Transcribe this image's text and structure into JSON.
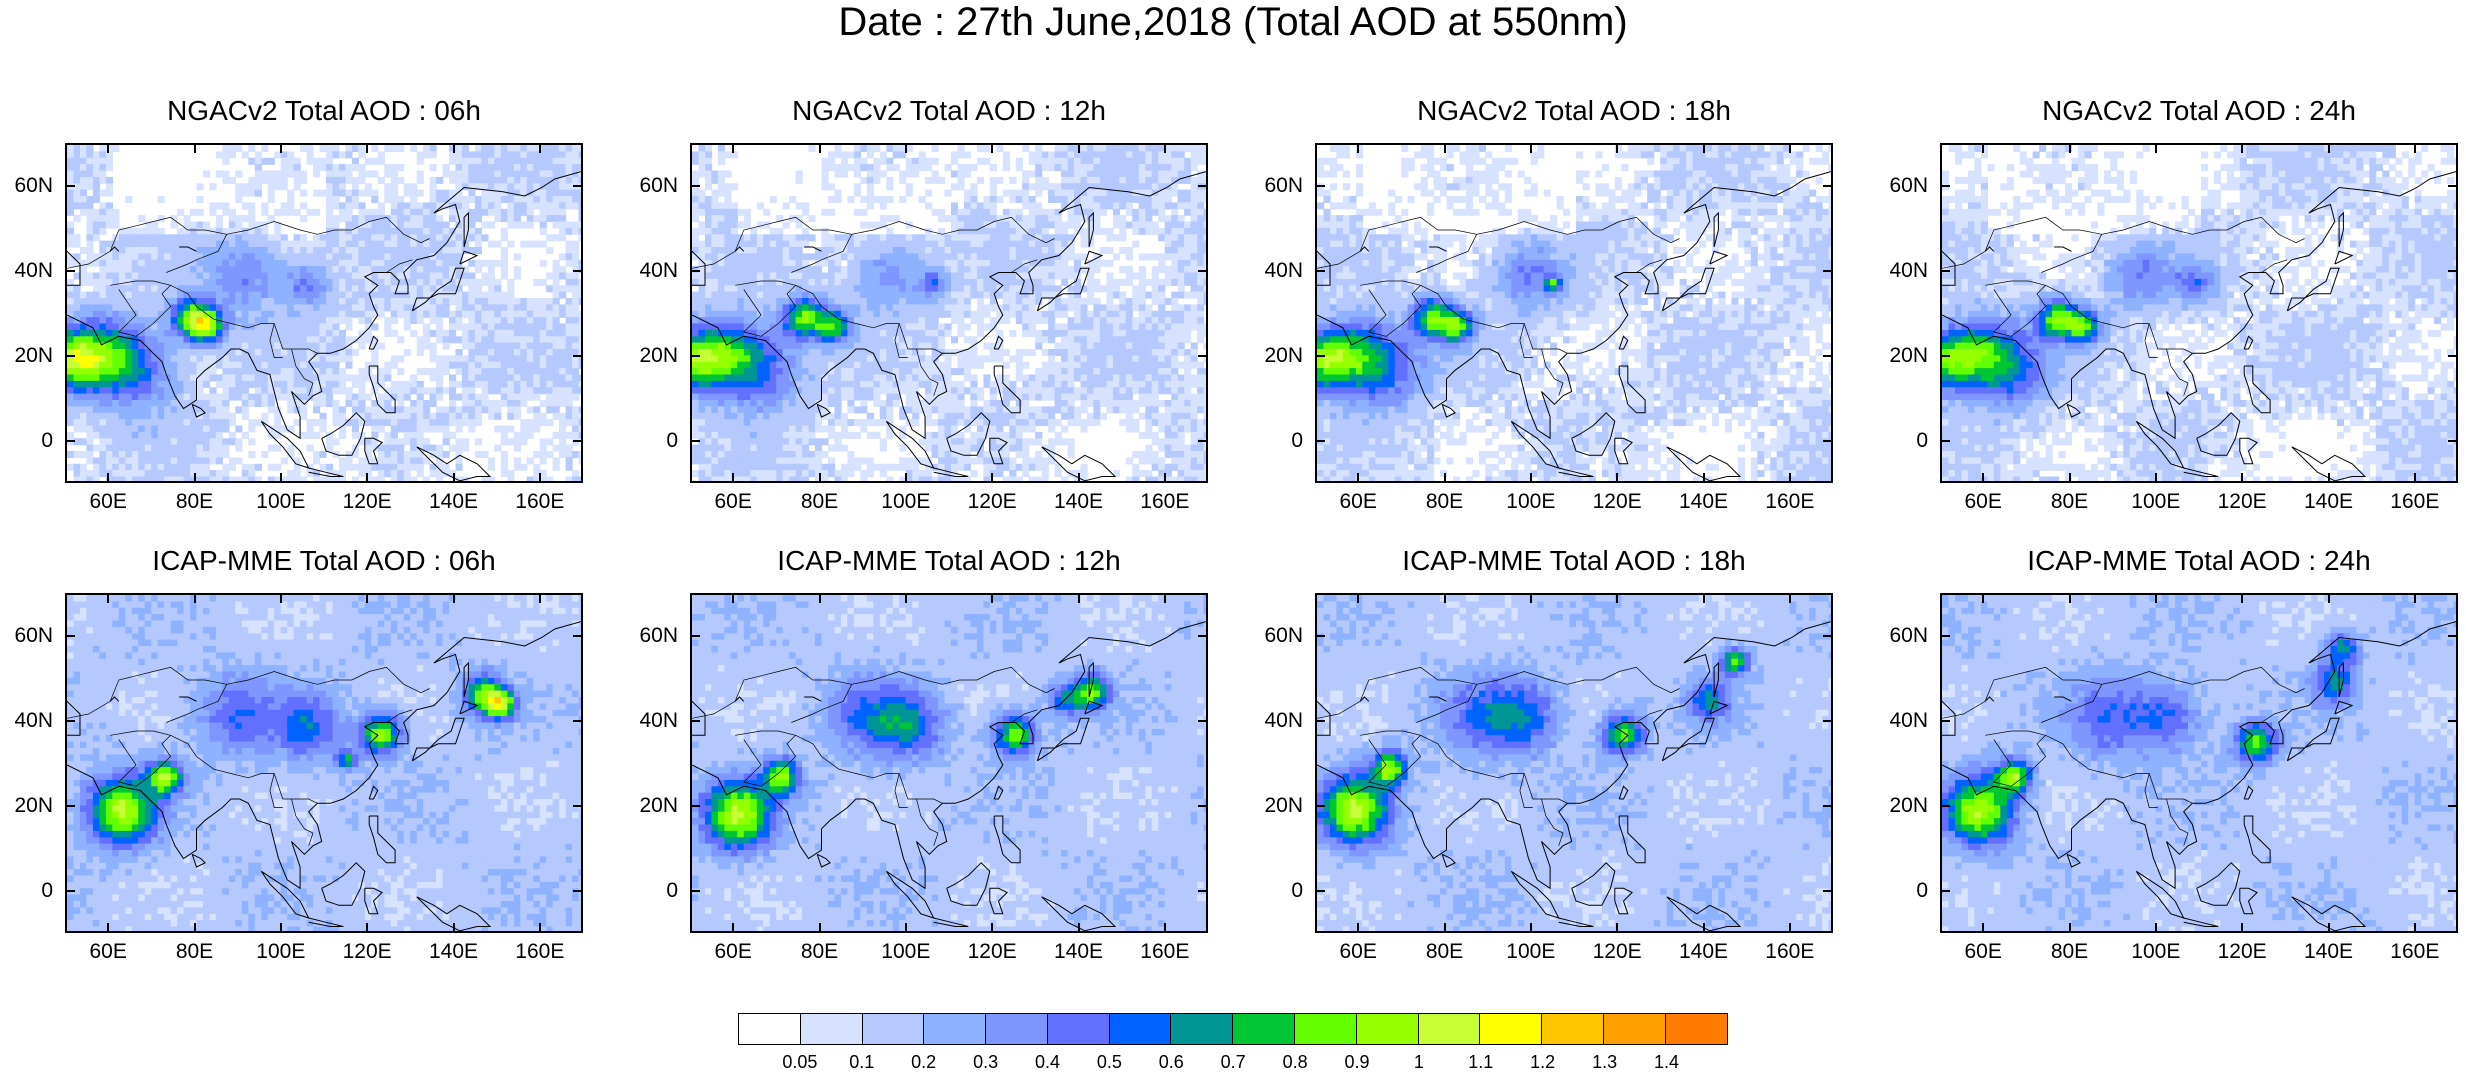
{
  "title": "Date : 27th June,2018 (Total AOD at 550nm)",
  "panels": [
    {
      "title": "NGACv2 Total AOD : 06h",
      "model": "NGACv2",
      "hour": "06h"
    },
    {
      "title": "NGACv2 Total AOD : 12h",
      "model": "NGACv2",
      "hour": "12h"
    },
    {
      "title": "NGACv2 Total AOD : 18h",
      "model": "NGACv2",
      "hour": "18h"
    },
    {
      "title": "NGACv2 Total AOD : 24h",
      "model": "NGACv2",
      "hour": "24h"
    },
    {
      "title": "ICAP-MME Total AOD : 06h",
      "model": "ICAP-MME",
      "hour": "06h"
    },
    {
      "title": "ICAP-MME Total AOD : 12h",
      "model": "ICAP-MME",
      "hour": "12h"
    },
    {
      "title": "ICAP-MME Total AOD : 18h",
      "model": "ICAP-MME",
      "hour": "18h"
    },
    {
      "title": "ICAP-MME Total AOD : 24h",
      "model": "ICAP-MME",
      "hour": "24h"
    }
  ],
  "axes": {
    "lat_labels": [
      "60N",
      "40N",
      "20N",
      "0"
    ],
    "lon_labels": [
      "60E",
      "80E",
      "100E",
      "120E",
      "140E",
      "160E"
    ],
    "lat_values": [
      60,
      40,
      20,
      0
    ],
    "lon_values": [
      60,
      80,
      100,
      120,
      140,
      160
    ],
    "lon_range": [
      50,
      170
    ],
    "lat_range": [
      -10,
      70
    ]
  },
  "colorbar": {
    "labels": [
      "0.05",
      "0.1",
      "0.2",
      "0.3",
      "0.4",
      "0.5",
      "0.6",
      "0.7",
      "0.8",
      "0.9",
      "1",
      "1.1",
      "1.2",
      "1.3",
      "1.4"
    ],
    "colors": [
      "#ffffff",
      "#d6e2ff",
      "#b5c9ff",
      "#8eb2ff",
      "#7f96ff",
      "#6370ff",
      "#0063ff",
      "#009696",
      "#00c633",
      "#63ff00",
      "#96ff00",
      "#c6ff33",
      "#ffff00",
      "#ffc600",
      "#ffa000",
      "#ff7c00",
      "#ff1900"
    ]
  }
}
